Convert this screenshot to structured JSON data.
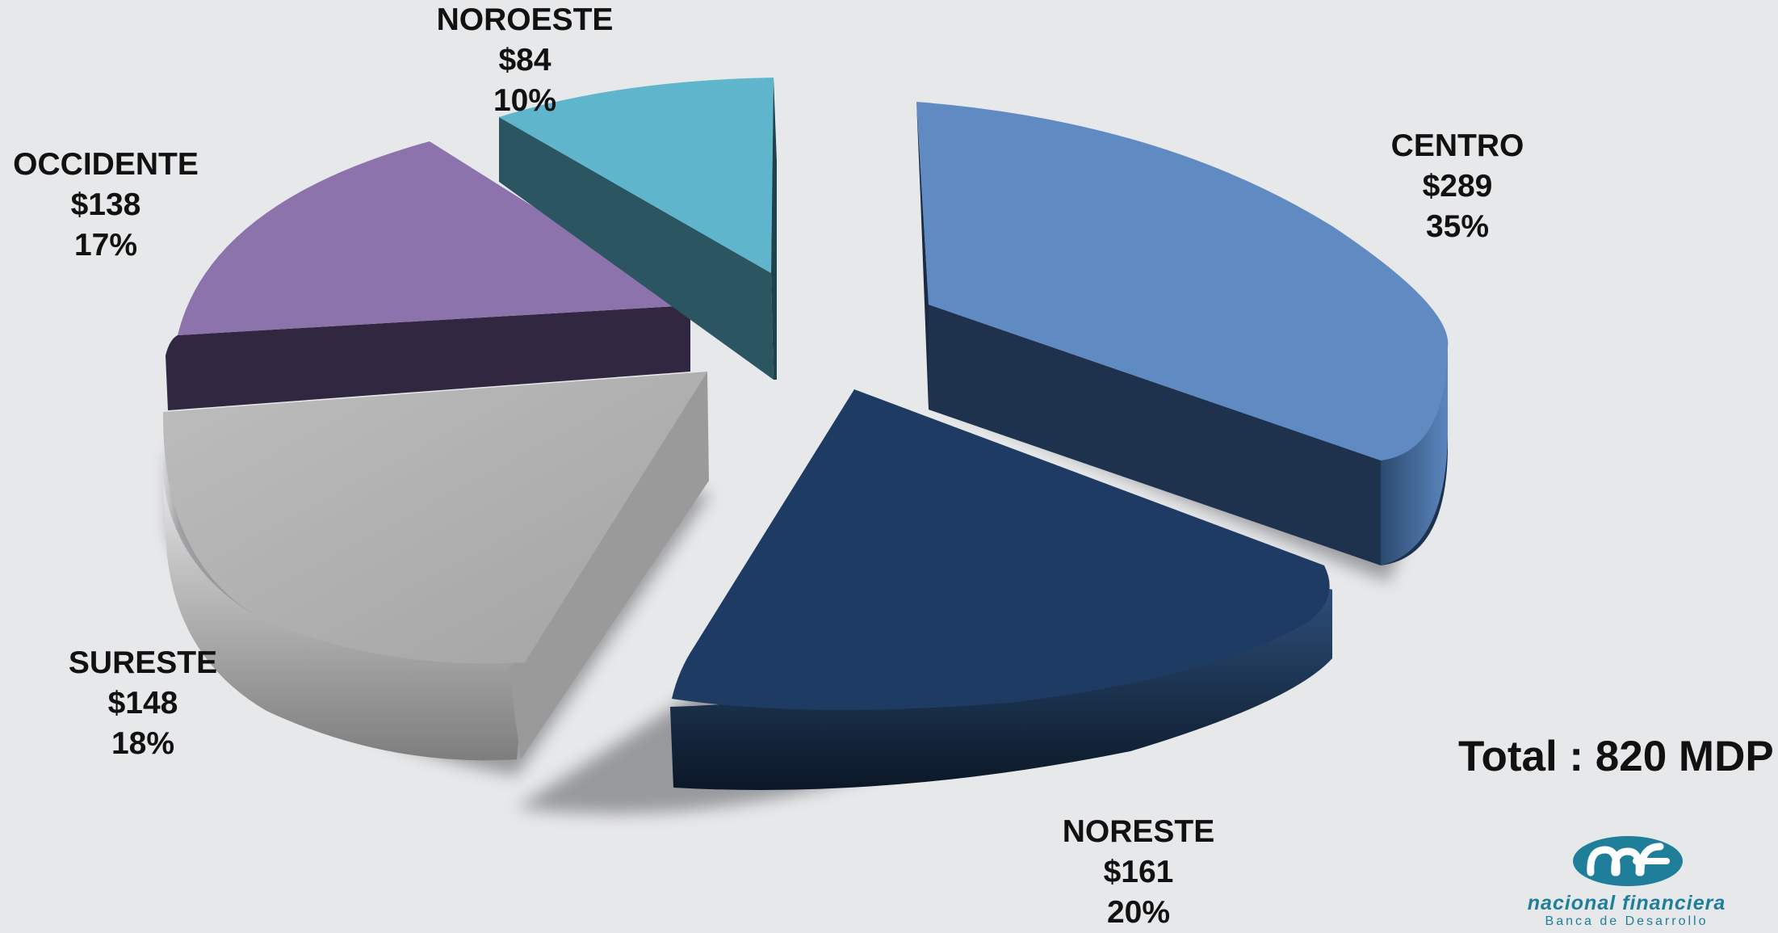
{
  "chart_data": {
    "type": "pie",
    "title": "",
    "slices": [
      {
        "label": "CENTRO",
        "value": "$289",
        "percent": "35%",
        "amount": 289,
        "color_top": "#5f8bc2",
        "color_side": "#23344f"
      },
      {
        "label": "NORESTE",
        "value": "$161",
        "percent": "20%",
        "amount": 161,
        "color_top": "#1d3b63",
        "color_side": "#0f1d30"
      },
      {
        "label": "SURESTE",
        "value": "$148",
        "percent": "18%",
        "amount": 148,
        "color_top": "#acacac",
        "color_side": "#8e8e8e"
      },
      {
        "label": "OCCIDENTE",
        "value": "$138",
        "percent": "17%",
        "amount": 138,
        "color_top": "#8c73ab",
        "color_side": "#33283f"
      },
      {
        "label": "NOROESTE",
        "value": "$84",
        "percent": "10%",
        "amount": 84,
        "color_top": "#5fb5cc",
        "color_side": "#2a5664"
      }
    ],
    "total_label": "Total : 820 MDP"
  },
  "logo": {
    "brand": "nacional financiera",
    "subtitle": "Banca de Desarrollo",
    "color": "#1f7e9a"
  }
}
